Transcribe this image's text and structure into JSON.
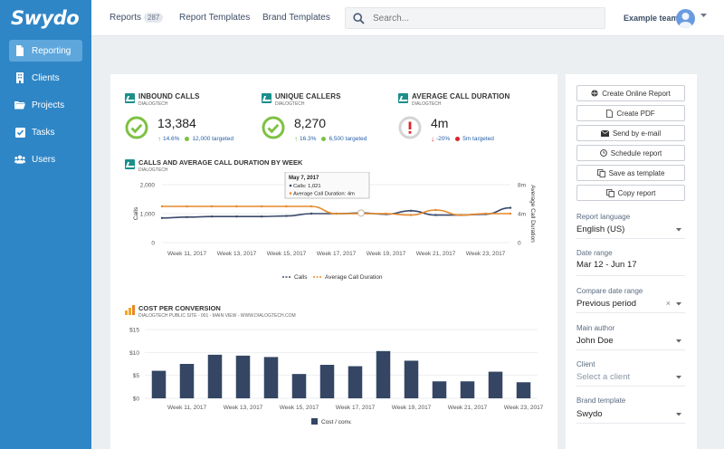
{
  "app": {
    "logo": "Swydo"
  },
  "sidebar": {
    "items": [
      {
        "label": "Reporting",
        "icon": "file-icon",
        "active": true
      },
      {
        "label": "Clients",
        "icon": "building-icon",
        "active": false
      },
      {
        "label": "Projects",
        "icon": "folder-icon",
        "active": false
      },
      {
        "label": "Tasks",
        "icon": "checkbox-icon",
        "active": false
      },
      {
        "label": "Users",
        "icon": "users-icon",
        "active": false
      }
    ]
  },
  "topbar": {
    "tabs": [
      {
        "label": "Reports",
        "badge": "287"
      },
      {
        "label": "Report Templates"
      },
      {
        "label": "Brand Templates"
      }
    ],
    "search": {
      "placeholder": "Search...",
      "value": ""
    },
    "team": "Example team"
  },
  "kpis": [
    {
      "title": "INBOUND CALLS",
      "source": "DIALOGTECH",
      "value": "13,384",
      "change": "14.6%",
      "change_dir": "up",
      "target": "12,000 targeted",
      "status": "ok"
    },
    {
      "title": "UNIQUE CALLERS",
      "source": "DIALOGTECH",
      "value": "8,270",
      "change": "16.3%",
      "change_dir": "up",
      "target": "6,500 targeted",
      "status": "ok"
    },
    {
      "title": "AVERAGE CALL DURATION",
      "source": "DIALOGTECH",
      "value": "4m",
      "change": "-20%",
      "change_dir": "down",
      "target": "5m targeted",
      "status": "warn"
    }
  ],
  "colors": {
    "sidebar": "#2f86c6",
    "ok": "#7ec143",
    "warn": "#d9262c",
    "calls": "#3a4a6a",
    "duration": "#e7892b",
    "bars": "#344664"
  },
  "line_chart": {
    "title": "CALLS AND AVERAGE CALL DURATION BY WEEK",
    "source": "DIALOGTECH",
    "tooltip": {
      "title": "May 7, 2017",
      "line1": "Calls: 1,021",
      "line2": "Average Call Duration: 4m"
    }
  },
  "bar_chart": {
    "title": "COST PER CONVERSION",
    "source": "DIALOGTECH PUBLIC SITE - 001 - MAIN VIEW - WWW.DIALOGTECH.COM"
  },
  "chart_data": [
    {
      "type": "line",
      "title": "CALLS AND AVERAGE CALL DURATION BY WEEK",
      "x": [
        "Week 10, 2017",
        "Week 11, 2017",
        "Week 12, 2017",
        "Week 13, 2017",
        "Week 14, 2017",
        "Week 15, 2017",
        "Week 16, 2017",
        "Week 17, 2017",
        "Week 18, 2017",
        "Week 19, 2017",
        "Week 20, 2017",
        "Week 21, 2017",
        "Week 22, 2017",
        "Week 23, 2017",
        "Week 24, 2017"
      ],
      "tick_labels": [
        "Week 11, 2017",
        "Week 13, 2017",
        "Week 15, 2017",
        "Week 17, 2017",
        "Week 19, 2017",
        "Week 21, 2017",
        "Week 23, 2017"
      ],
      "ylabel": "Calls",
      "ylabel_right": "Average Call Duration",
      "ylim": [
        0,
        2000
      ],
      "yticks": [
        "0",
        "1,000",
        "2,000"
      ],
      "ylim_right": [
        0,
        8
      ],
      "yticks_right": [
        "0",
        "4m",
        "8m"
      ],
      "series": [
        {
          "name": "Calls",
          "axis": "left",
          "values": [
            850,
            880,
            900,
            900,
            900,
            920,
            1000,
            1000,
            1021,
            980,
            1100,
            950,
            950,
            980,
            1200
          ]
        },
        {
          "name": "Average Call Duration",
          "axis": "right",
          "values": [
            5,
            5,
            5,
            5,
            5,
            5,
            5,
            4,
            4,
            4,
            3.8,
            4.5,
            3.8,
            4,
            4
          ]
        }
      ],
      "legend": "bottom-center",
      "grid": true
    },
    {
      "type": "bar",
      "title": "COST PER CONVERSION",
      "categories": [
        "Week 10, 2017",
        "Week 11, 2017",
        "Week 12, 2017",
        "Week 13, 2017",
        "Week 14, 2017",
        "Week 15, 2017",
        "Week 16, 2017",
        "Week 17, 2017",
        "Week 18, 2017",
        "Week 19, 2017",
        "Week 20, 2017",
        "Week 21, 2017",
        "Week 22, 2017",
        "Week 23, 2017"
      ],
      "tick_labels": [
        "Week 11, 2017",
        "Week 13, 2017",
        "Week 15, 2017",
        "Week 17, 2017",
        "Week 19, 2017",
        "Week 21, 2017",
        "Week 23, 2017"
      ],
      "yticks": [
        "$0",
        "$5",
        "$10",
        "$15"
      ],
      "ylim": [
        0,
        15
      ],
      "series": [
        {
          "name": "Cost / conv.",
          "values": [
            6.0,
            7.5,
            9.5,
            9.3,
            9.0,
            5.3,
            7.3,
            7.0,
            10.3,
            8.2,
            3.7,
            3.7,
            5.8,
            3.5
          ]
        }
      ],
      "legend": "bottom-center",
      "grid": true
    }
  ],
  "actions": {
    "buttons": [
      {
        "label": "Create Online Report",
        "icon": "globe-icon"
      },
      {
        "label": "Create PDF",
        "icon": "pdf-icon"
      },
      {
        "label": "Send by e-mail",
        "icon": "envelope-icon"
      },
      {
        "label": "Schedule report",
        "icon": "clock-icon"
      },
      {
        "label": "Save as template",
        "icon": "copy-icon"
      },
      {
        "label": "Copy report",
        "icon": "copy-icon"
      }
    ]
  },
  "settings": {
    "language": {
      "label": "Report language",
      "value": "English (US)"
    },
    "date_range": {
      "label": "Date range",
      "value": "Mar 12 - Jun 17"
    },
    "compare": {
      "label": "Compare date range",
      "value": "Previous period",
      "clear": "×"
    },
    "author": {
      "label": "Main author",
      "value": "John Doe"
    },
    "client": {
      "label": "Client",
      "placeholder": "Select a client"
    },
    "brand": {
      "label": "Brand template",
      "value": "Swydo"
    }
  }
}
